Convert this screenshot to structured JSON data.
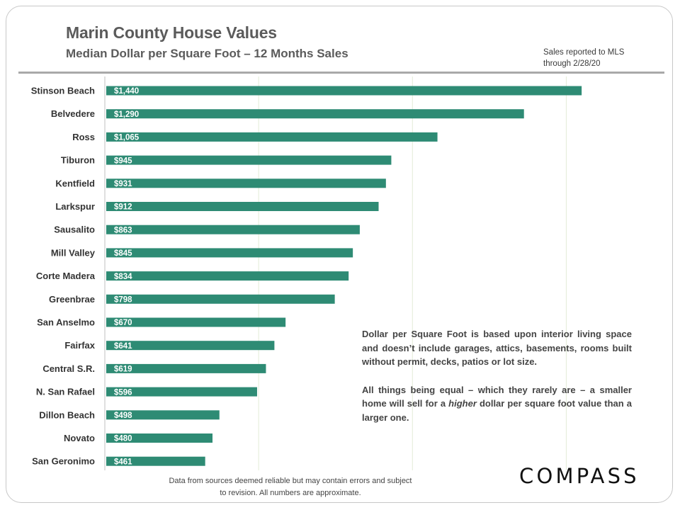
{
  "header": {
    "title": "Marin County House Values",
    "subtitle": "Median Dollar per Square Foot – 12 Months Sales",
    "note_line1": "Sales reported to MLS",
    "note_line2": "through 2/28/20"
  },
  "annotation": {
    "para1": "Dollar per Square Foot is based upon interior living space and doesn’t include garages, attics, basements, rooms built without permit, decks, patios or lot size.",
    "para2_pre": "All things being equal – which they rarely are – a smaller home will sell for a ",
    "para2_em": "higher",
    "para2_post": " dollar per square foot value than a larger one."
  },
  "footer": {
    "line1": "Data from sources deemed reliable but  may contain errors and subject",
    "line2": "to revision.  All numbers are approximate."
  },
  "logo": {
    "text": "COMPASS"
  },
  "colors": {
    "bar": "#2e8b74",
    "grid": "#e3ecd7",
    "axis": "#bfbfbf"
  },
  "chart_data": {
    "type": "bar",
    "orientation": "horizontal",
    "title": "Marin County House Values",
    "subtitle": "Median Dollar per Square Foot – 12 Months Sales",
    "categories": [
      "Stinson Beach",
      "Belvedere",
      "Ross",
      "Tiburon",
      "Kentfield",
      "Larkspur",
      "Sausalito",
      "Mill Valley",
      "Corte Madera",
      "Greenbrae",
      "San Anselmo",
      "Fairfax",
      "Central S.R.",
      "N. San Rafael",
      "Dillon Beach",
      "Novato",
      "San Geronimo"
    ],
    "values": [
      1440,
      1290,
      1065,
      945,
      931,
      912,
      863,
      845,
      834,
      798,
      670,
      641,
      619,
      596,
      498,
      480,
      461
    ],
    "data_labels": [
      "$1,440",
      "$1,290",
      "$1,065",
      "$945",
      "$931",
      "$912",
      "$863",
      "$845",
      "$834",
      "$798",
      "$670",
      "$641",
      "$619",
      "$596",
      "$498",
      "$480",
      "$461"
    ],
    "xlim": [
      200,
      1600
    ],
    "x_gridlines": [
      600,
      1000,
      1400
    ],
    "grid": true,
    "legend": "none"
  }
}
